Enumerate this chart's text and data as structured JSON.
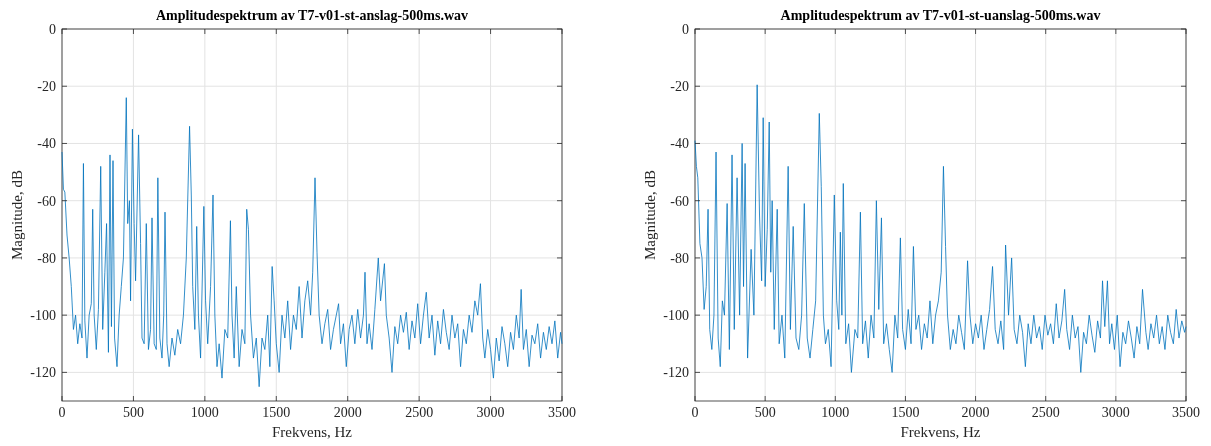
{
  "chart_data": [
    {
      "type": "line",
      "title": "Amplitudespektrum av T7-v01-st-anslag-500ms.wav",
      "xlabel": "Frekvens, Hz",
      "ylabel": "Magnitude, dB",
      "xlim": [
        0,
        3500
      ],
      "ylim": [
        -130,
        0
      ],
      "xticks": [
        0,
        500,
        1000,
        1500,
        2000,
        2500,
        3000,
        3500
      ],
      "yticks": [
        -120,
        -100,
        -80,
        -60,
        -40,
        -20,
        0
      ],
      "grid": true,
      "marker": "none",
      "line_style": "solid",
      "series": [
        {
          "color": "#0072bd",
          "x": [
            0,
            10,
            20,
            35,
            50,
            65,
            80,
            95,
            110,
            125,
            140,
            150,
            160,
            175,
            190,
            205,
            215,
            225,
            240,
            255,
            271,
            285,
            300,
            312,
            325,
            336,
            346,
            357,
            368,
            385,
            400,
            415,
            430,
            450,
            460,
            472,
            480,
            493,
            505,
            515,
            536,
            550,
            560,
            575,
            590,
            605,
            620,
            630,
            645,
            660,
            671,
            685,
            700,
            712,
            721,
            735,
            750,
            770,
            790,
            810,
            830,
            850,
            870,
            893,
            905,
            915,
            930,
            943,
            955,
            970,
            993,
            1005,
            1020,
            1040,
            1057,
            1070,
            1085,
            1100,
            1120,
            1140,
            1160,
            1179,
            1190,
            1205,
            1220,
            1240,
            1260,
            1280,
            1293,
            1305,
            1320,
            1340,
            1360,
            1380,
            1400,
            1420,
            1440,
            1455,
            1471,
            1485,
            1500,
            1520,
            1540,
            1560,
            1580,
            1600,
            1620,
            1640,
            1660,
            1680,
            1700,
            1720,
            1740,
            1755,
            1771,
            1785,
            1800,
            1820,
            1840,
            1860,
            1880,
            1900,
            1920,
            1936,
            1950,
            1970,
            1990,
            2010,
            2030,
            2050,
            2070,
            2090,
            2110,
            2121,
            2135,
            2150,
            2170,
            2190,
            2214,
            2230,
            2257,
            2270,
            2290,
            2310,
            2330,
            2350,
            2370,
            2390,
            2410,
            2430,
            2450,
            2470,
            2490,
            2510,
            2530,
            2550,
            2570,
            2590,
            2610,
            2630,
            2650,
            2670,
            2690,
            2710,
            2730,
            2750,
            2770,
            2790,
            2810,
            2830,
            2850,
            2870,
            2890,
            2910,
            2929,
            2945,
            2960,
            2980,
            3000,
            3020,
            3040,
            3060,
            3080,
            3100,
            3120,
            3140,
            3160,
            3180,
            3200,
            3214,
            3230,
            3250,
            3270,
            3290,
            3310,
            3330,
            3350,
            3370,
            3390,
            3410,
            3430,
            3450,
            3470,
            3490,
            3500
          ],
          "values": [
            -43,
            -56,
            -57,
            -72,
            -80,
            -90,
            -105,
            -100,
            -110,
            -103,
            -108,
            -47,
            -102,
            -115,
            -100,
            -96,
            -63,
            -100,
            -112,
            -98,
            -48,
            -105,
            -85,
            -68,
            -113,
            -44,
            -104,
            -46,
            -108,
            -118,
            -100,
            -90,
            -80,
            -24,
            -68,
            -60,
            -95,
            -35,
            -68,
            -88,
            -37,
            -75,
            -108,
            -110,
            -68,
            -112,
            -105,
            -66,
            -110,
            -112,
            -52,
            -108,
            -115,
            -100,
            -64,
            -110,
            -118,
            -108,
            -114,
            -105,
            -110,
            -100,
            -80,
            -34,
            -58,
            -90,
            -105,
            -69,
            -100,
            -115,
            -62,
            -95,
            -110,
            -90,
            -58,
            -100,
            -118,
            -110,
            -122,
            -105,
            -108,
            -67,
            -100,
            -115,
            -90,
            -118,
            -105,
            -110,
            -63,
            -70,
            -100,
            -115,
            -108,
            -125,
            -108,
            -112,
            -100,
            -118,
            -83,
            -95,
            -110,
            -120,
            -100,
            -108,
            -95,
            -112,
            -100,
            -105,
            -90,
            -108,
            -95,
            -88,
            -100,
            -85,
            -52,
            -78,
            -100,
            -110,
            -103,
            -98,
            -112,
            -105,
            -100,
            -96,
            -110,
            -103,
            -118,
            -105,
            -100,
            -110,
            -98,
            -108,
            -100,
            -85,
            -110,
            -103,
            -112,
            -98,
            -80,
            -95,
            -82,
            -100,
            -108,
            -120,
            -104,
            -110,
            -100,
            -106,
            -99,
            -112,
            -102,
            -108,
            -96,
            -110,
            -100,
            -92,
            -108,
            -100,
            -114,
            -102,
            -110,
            -98,
            -106,
            -112,
            -100,
            -108,
            -103,
            -118,
            -105,
            -110,
            -100,
            -106,
            -95,
            -100,
            -89,
            -108,
            -115,
            -105,
            -112,
            -122,
            -108,
            -116,
            -104,
            -110,
            -118,
            -106,
            -112,
            -100,
            -108,
            -91,
            -112,
            -105,
            -118,
            -107,
            -110,
            -103,
            -115,
            -106,
            -112,
            -104,
            -110,
            -102,
            -115,
            -106,
            -110
          ]
        }
      ]
    },
    {
      "type": "line",
      "title": "Amplitudespektrum av T7-v01-st-uanslag-500ms.wav",
      "xlabel": "Frekvens, Hz",
      "ylabel": "Magnitude, dB",
      "xlim": [
        0,
        3500
      ],
      "ylim": [
        -130,
        0
      ],
      "xticks": [
        0,
        500,
        1000,
        1500,
        2000,
        2500,
        3000,
        3500
      ],
      "yticks": [
        -120,
        -100,
        -80,
        -60,
        -40,
        -20,
        0
      ],
      "grid": true,
      "marker": "none",
      "line_style": "solid",
      "series": [
        {
          "color": "#0072bd",
          "x": [
            0,
            10,
            20,
            35,
            50,
            65,
            80,
            93,
            105,
            120,
            135,
            150,
            165,
            180,
            195,
            210,
            229,
            245,
            264,
            280,
            300,
            318,
            336,
            346,
            357,
            375,
            400,
            420,
            443,
            460,
            475,
            486,
            500,
            515,
            529,
            540,
            550,
            565,
            586,
            600,
            620,
            640,
            664,
            680,
            700,
            720,
            740,
            760,
            779,
            800,
            820,
            840,
            860,
            886,
            900,
            915,
            930,
            950,
            970,
            993,
            1010,
            1025,
            1036,
            1047,
            1057,
            1075,
            1095,
            1115,
            1140,
            1160,
            1179,
            1195,
            1215,
            1235,
            1255,
            1275,
            1293,
            1310,
            1329,
            1345,
            1365,
            1385,
            1405,
            1425,
            1445,
            1464,
            1480,
            1500,
            1520,
            1540,
            1557,
            1575,
            1595,
            1615,
            1635,
            1655,
            1675,
            1695,
            1715,
            1735,
            1755,
            1771,
            1786,
            1800,
            1820,
            1840,
            1860,
            1880,
            1900,
            1920,
            1943,
            1960,
            1980,
            2000,
            2020,
            2040,
            2060,
            2080,
            2100,
            2121,
            2140,
            2160,
            2180,
            2200,
            2214,
            2235,
            2257,
            2275,
            2295,
            2315,
            2335,
            2355,
            2375,
            2395,
            2415,
            2435,
            2455,
            2475,
            2495,
            2515,
            2535,
            2555,
            2575,
            2595,
            2615,
            2635,
            2650,
            2670,
            2690,
            2710,
            2730,
            2750,
            2770,
            2790,
            2810,
            2830,
            2850,
            2870,
            2890,
            2905,
            2921,
            2940,
            2955,
            2971,
            2990,
            3010,
            3030,
            3050,
            3070,
            3090,
            3110,
            3130,
            3150,
            3170,
            3190,
            3214,
            3230,
            3250,
            3270,
            3290,
            3310,
            3330,
            3350,
            3370,
            3390,
            3410,
            3430,
            3450,
            3470,
            3490,
            3500
          ],
          "values": [
            -39,
            -48,
            -52,
            -75,
            -80,
            -98,
            -90,
            -63,
            -105,
            -112,
            -100,
            -43,
            -108,
            -118,
            -95,
            -100,
            -61,
            -112,
            -44,
            -105,
            -52,
            -100,
            -40,
            -90,
            -47,
            -115,
            -77,
            -100,
            -19.5,
            -65,
            -88,
            -31,
            -90,
            -70,
            -32.5,
            -85,
            -60,
            -105,
            -63,
            -110,
            -100,
            -115,
            -48,
            -105,
            -69,
            -108,
            -112,
            -100,
            -61,
            -108,
            -115,
            -105,
            -95,
            -29.5,
            -55,
            -100,
            -110,
            -105,
            -118,
            -58,
            -95,
            -105,
            -71,
            -100,
            -54,
            -110,
            -103,
            -120,
            -105,
            -108,
            -64,
            -110,
            -102,
            -115,
            -100,
            -108,
            -60,
            -98,
            -66,
            -110,
            -103,
            -112,
            -120,
            -100,
            -108,
            -73,
            -105,
            -112,
            -98,
            -110,
            -76,
            -105,
            -100,
            -112,
            -103,
            -108,
            -95,
            -110,
            -100,
            -95,
            -85,
            -48,
            -76,
            -100,
            -112,
            -105,
            -110,
            -100,
            -106,
            -112,
            -81,
            -100,
            -110,
            -103,
            -108,
            -100,
            -112,
            -105,
            -98,
            -83,
            -105,
            -110,
            -102,
            -112,
            -75.5,
            -100,
            -80,
            -105,
            -110,
            -100,
            -106,
            -118,
            -103,
            -110,
            -100,
            -108,
            -104,
            -112,
            -100,
            -107,
            -103,
            -110,
            -96,
            -108,
            -102,
            -91,
            -105,
            -112,
            -100,
            -108,
            -104,
            -120,
            -106,
            -110,
            -100,
            -107,
            -113,
            -102,
            -108,
            -88,
            -104,
            -88,
            -110,
            -103,
            -112,
            -100,
            -118,
            -106,
            -110,
            -102,
            -108,
            -115,
            -104,
            -110,
            -91,
            -106,
            -112,
            -103,
            -108,
            -100,
            -110,
            -104,
            -112,
            -100,
            -106,
            -110,
            -98,
            -108,
            -102,
            -106,
            -104
          ]
        }
      ]
    }
  ]
}
